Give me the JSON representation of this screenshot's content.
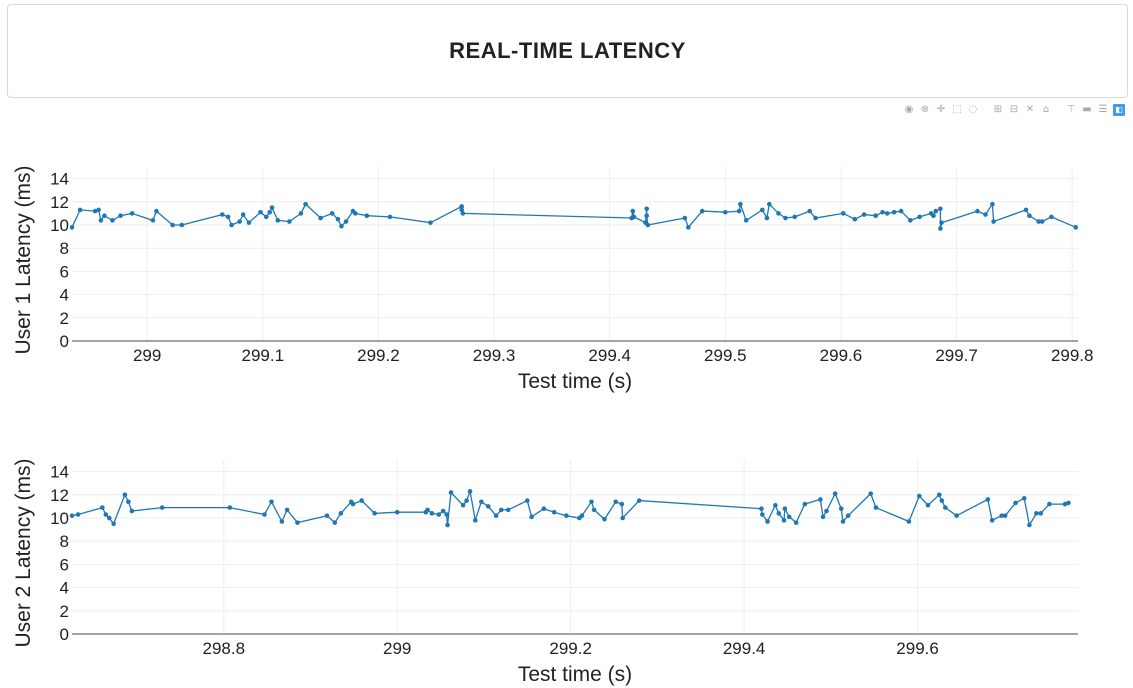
{
  "page": {
    "title": "REAL-TIME LATENCY",
    "modebar_icons": [
      "camera-icon",
      "zoom-icon",
      "pan-icon",
      "box-select-icon",
      "lasso-icon",
      "zoom-in-icon",
      "zoom-out-icon",
      "autoscale-icon",
      "reset-axes-icon",
      "spike-lines-icon",
      "hover-closest-icon",
      "hover-compare-icon",
      "plotly-logo-icon"
    ]
  },
  "colors": {
    "line": "#1f77b4",
    "grid": "#eeeeee",
    "axis": "#444444"
  },
  "chart_data": [
    {
      "type": "line",
      "xlabel": "Test time (s)",
      "ylabel": "User 1 Latency (ms)",
      "xlim": [
        298.935,
        299.805
      ],
      "ylim": [
        0,
        15
      ],
      "xticks": [
        299,
        299.1,
        299.2,
        299.3,
        299.4,
        299.5,
        299.6,
        299.7,
        299.8
      ],
      "xtick_labels": [
        "299",
        "299.1",
        "299.2",
        "299.3",
        "299.4",
        "299.5",
        "299.6",
        "299.7",
        "299.8"
      ],
      "yticks": [
        0,
        2,
        4,
        6,
        8,
        10,
        12,
        14
      ],
      "ytick_labels": [
        "0",
        "2",
        "4",
        "6",
        "8",
        "10",
        "12",
        "14"
      ],
      "grid": true,
      "series": [
        {
          "x": [
            298.935,
            298.942,
            298.955,
            298.958,
            298.96,
            298.963,
            298.97,
            298.977,
            298.987,
            299.005,
            299.008,
            299.022,
            299.03,
            299.065,
            299.07,
            299.073,
            299.08,
            299.083,
            299.088,
            299.098,
            299.103,
            299.106,
            299.108,
            299.113,
            299.123,
            299.133,
            299.137,
            299.15,
            299.16,
            299.165,
            299.168,
            299.172,
            299.178,
            299.18,
            299.19,
            299.21,
            299.245,
            299.272,
            299.272,
            299.273,
            299.419,
            299.42,
            299.421,
            299.431,
            299.432,
            299.432,
            299.433,
            299.465,
            299.468,
            299.48,
            299.5,
            299.512,
            299.513,
            299.518,
            299.532,
            299.536,
            299.538,
            299.546,
            299.552,
            299.56,
            299.573,
            299.578,
            299.602,
            299.612,
            299.62,
            299.63,
            299.636,
            299.64,
            299.646,
            299.652,
            299.66,
            299.668,
            299.678,
            299.68,
            299.682,
            299.686,
            299.686,
            299.687,
            299.718,
            299.725,
            299.731,
            299.732,
            299.76,
            299.763,
            299.771,
            299.774,
            299.782,
            299.803
          ],
          "y": [
            9.8,
            11.3,
            11.2,
            11.3,
            10.4,
            10.8,
            10.4,
            10.8,
            11.0,
            10.4,
            11.2,
            10.0,
            10.0,
            10.9,
            10.7,
            10.0,
            10.3,
            10.9,
            10.2,
            11.1,
            10.7,
            11.1,
            11.5,
            10.4,
            10.3,
            11.0,
            11.8,
            10.6,
            11.0,
            10.5,
            9.9,
            10.3,
            11.2,
            11.0,
            10.8,
            10.7,
            10.2,
            11.6,
            11.3,
            11.0,
            10.6,
            11.2,
            10.7,
            10.2,
            11.4,
            10.8,
            10.0,
            10.6,
            9.8,
            11.2,
            11.1,
            11.2,
            11.8,
            10.4,
            11.3,
            10.6,
            11.8,
            11.0,
            10.6,
            10.7,
            11.2,
            10.6,
            11.0,
            10.5,
            10.9,
            10.8,
            11.1,
            11.0,
            11.1,
            11.2,
            10.4,
            10.7,
            11.0,
            10.8,
            11.2,
            11.4,
            9.7,
            10.2,
            11.2,
            10.9,
            11.8,
            10.3,
            11.3,
            10.8,
            10.3,
            10.3,
            10.7,
            9.8
          ]
        }
      ]
    },
    {
      "type": "line",
      "xlabel": "Test time (s)",
      "ylabel": "User 2 Latency (ms)",
      "xlim": [
        298.625,
        299.785
      ],
      "ylim": [
        0,
        15
      ],
      "xticks": [
        298.8,
        299,
        299.2,
        299.4,
        299.6
      ],
      "xtick_labels": [
        "298.8",
        "299",
        "299.2",
        "299.4",
        "299.6"
      ],
      "yticks": [
        0,
        2,
        4,
        6,
        8,
        10,
        12,
        14
      ],
      "ytick_labels": [
        "0",
        "2",
        "4",
        "6",
        "8",
        "10",
        "12",
        "14"
      ],
      "grid": true,
      "series": [
        {
          "x": [
            298.625,
            298.632,
            298.66,
            298.664,
            298.668,
            298.673,
            298.686,
            298.69,
            298.694,
            298.729,
            298.807,
            298.847,
            298.855,
            298.867,
            298.873,
            298.885,
            298.919,
            298.928,
            298.935,
            298.947,
            298.949,
            298.959,
            298.974,
            299.0,
            299.033,
            299.035,
            299.04,
            299.048,
            299.053,
            299.057,
            299.058,
            299.062,
            299.076,
            299.08,
            299.084,
            299.09,
            299.097,
            299.105,
            299.114,
            299.12,
            299.128,
            299.15,
            299.155,
            299.169,
            299.181,
            299.195,
            299.21,
            299.213,
            299.224,
            299.227,
            299.239,
            299.252,
            299.259,
            299.26,
            299.279,
            299.42,
            299.421,
            299.427,
            299.436,
            299.44,
            299.446,
            299.447,
            299.452,
            299.46,
            299.47,
            299.488,
            299.491,
            299.495,
            299.505,
            299.512,
            299.514,
            299.52,
            299.546,
            299.552,
            299.59,
            299.602,
            299.612,
            299.625,
            299.628,
            299.632,
            299.645,
            299.681,
            299.686,
            299.697,
            299.701,
            299.713,
            299.723,
            299.729,
            299.737,
            299.742,
            299.752,
            299.77,
            299.774
          ],
          "y": [
            10.2,
            10.3,
            10.9,
            10.3,
            10.0,
            9.5,
            12.0,
            11.4,
            10.6,
            10.9,
            10.9,
            10.3,
            11.4,
            9.7,
            10.7,
            9.6,
            10.2,
            9.6,
            10.4,
            11.4,
            11.2,
            11.5,
            10.4,
            10.5,
            10.5,
            10.7,
            10.4,
            10.3,
            10.6,
            10.3,
            9.4,
            12.2,
            11.1,
            11.5,
            12.3,
            9.8,
            11.4,
            11.0,
            10.2,
            10.7,
            10.7,
            11.5,
            10.1,
            10.8,
            10.5,
            10.2,
            10.0,
            10.2,
            11.4,
            10.7,
            9.9,
            11.4,
            11.2,
            10.0,
            11.5,
            10.8,
            10.3,
            9.7,
            11.1,
            10.4,
            9.8,
            10.8,
            10.1,
            9.6,
            11.2,
            11.6,
            10.1,
            10.6,
            12.1,
            10.8,
            9.7,
            10.2,
            12.1,
            10.9,
            9.7,
            11.9,
            11.1,
            12.0,
            11.5,
            10.9,
            10.2,
            11.6,
            9.8,
            10.2,
            10.2,
            11.3,
            11.7,
            9.4,
            10.4,
            10.4,
            11.2,
            11.2,
            11.3
          ]
        }
      ]
    }
  ]
}
